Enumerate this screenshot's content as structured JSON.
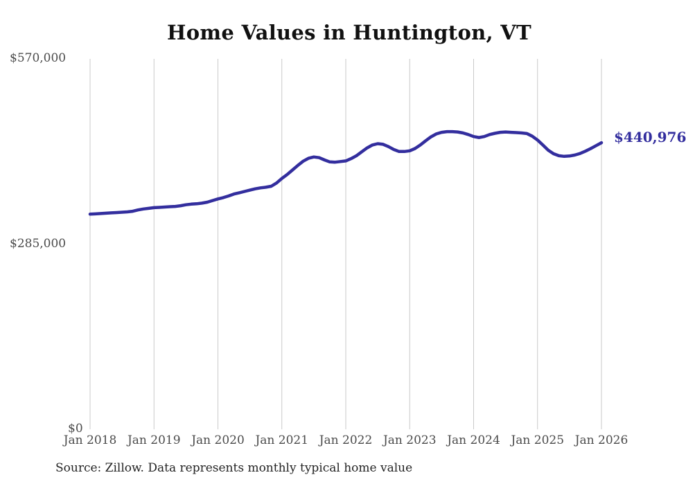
{
  "chart_data": {
    "type": "line",
    "title": "Home Values in Huntington, VT",
    "source": "Source: Zillow. Data represents monthly typical home value",
    "x_start": "2018-01",
    "x_end": "2026-01",
    "frequency": "monthly",
    "x_tick_labels": [
      "Jan 2018",
      "Jan 2019",
      "Jan 2020",
      "Jan 2021",
      "Jan 2022",
      "Jan 2023",
      "Jan 2024",
      "Jan 2025",
      "Jan 2026"
    ],
    "y_tick_labels": [
      "$570,000",
      "$285,000",
      "$0"
    ],
    "y_tick_values": [
      570000,
      285000,
      0
    ],
    "ylim": [
      0,
      570000
    ],
    "grid": "vertical-only",
    "legend": "none",
    "values": [
      331000,
      331500,
      332000,
      332500,
      333000,
      333500,
      334000,
      334500,
      335500,
      337500,
      339000,
      340000,
      341000,
      341500,
      342000,
      342500,
      343000,
      344000,
      345500,
      346500,
      347000,
      348000,
      349500,
      352000,
      354500,
      356500,
      359000,
      362000,
      364000,
      366000,
      368000,
      370000,
      371500,
      372500,
      374000,
      379000,
      386000,
      392000,
      399000,
      406000,
      412500,
      417000,
      419000,
      418000,
      414500,
      411500,
      411000,
      412000,
      413000,
      416500,
      421000,
      427000,
      433000,
      437500,
      439500,
      438500,
      435000,
      430500,
      427500,
      427500,
      428500,
      432000,
      437500,
      444000,
      450000,
      454500,
      457000,
      458000,
      458000,
      457500,
      456000,
      453500,
      450500,
      449000,
      450500,
      453500,
      455500,
      457000,
      457500,
      457000,
      456500,
      456000,
      455000,
      451000,
      445000,
      437500,
      429500,
      424000,
      421000,
      420000,
      420500,
      422000,
      424500,
      428000,
      432000,
      436500,
      440976
    ],
    "latest_value": 440976,
    "latest_value_label": "$440,976",
    "line_color": "#332e9e",
    "grid_color": "#c9c9c9",
    "axis_text_color": "#4a4a4a"
  }
}
